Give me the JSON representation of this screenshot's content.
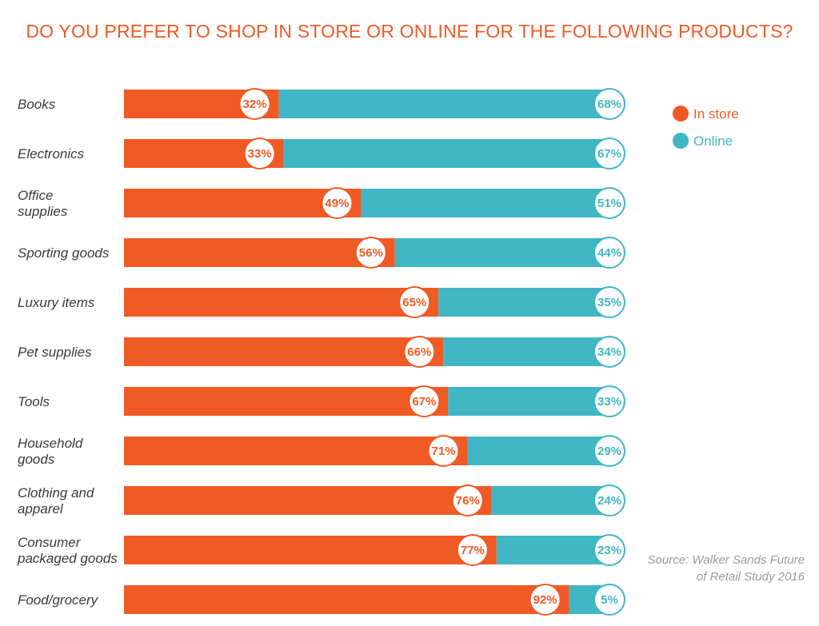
{
  "chart_data": {
    "type": "bar",
    "stacked": true,
    "orientation": "horizontal",
    "title": "DO YOU PREFER TO SHOP IN STORE OR ONLINE FOR THE FOLLOWING PRODUCTS?",
    "categories": [
      [
        "Books"
      ],
      [
        "Electronics"
      ],
      [
        "Office",
        "supplies"
      ],
      [
        "Sporting goods"
      ],
      [
        "Luxury items"
      ],
      [
        "Pet supplies"
      ],
      [
        "Tools"
      ],
      [
        "Household",
        "goods"
      ],
      [
        "Clothing and",
        "apparel"
      ],
      [
        "Consumer",
        "packaged goods"
      ],
      [
        "Food/grocery"
      ]
    ],
    "series": [
      {
        "name": "In store",
        "color": "#f05a24",
        "values": [
          32,
          33,
          49,
          56,
          65,
          66,
          67,
          71,
          76,
          77,
          92
        ]
      },
      {
        "name": "Online",
        "color": "#41b6c4",
        "values": [
          68,
          67,
          51,
          44,
          35,
          34,
          33,
          29,
          24,
          23,
          5
        ]
      }
    ],
    "unit": "%",
    "xlim": [
      0,
      100
    ],
    "legend_position": "right",
    "grid": false,
    "source": [
      "Source: Walker Sands Future",
      "of Retail Study 2016"
    ]
  }
}
